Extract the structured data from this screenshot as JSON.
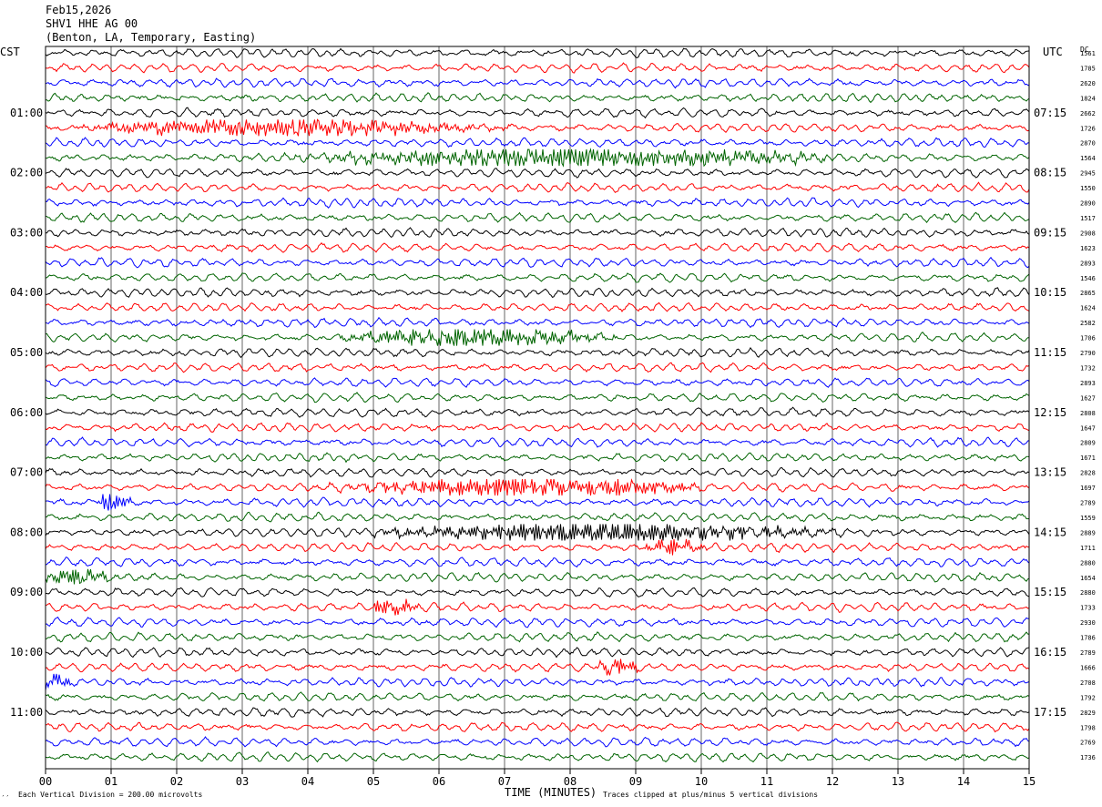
{
  "header": {
    "date": "Feb15,2026",
    "station": "SHV1 HHE AG 00",
    "location": "(Benton, LA, Temporary, Easting)"
  },
  "labels": {
    "left_tz": "CST",
    "right_tz": "UTC",
    "right_col": "DC",
    "xlabel": "TIME (MINUTES)",
    "footer_left": "Each Vertical Division =  200.00 microvolts",
    "footer_right": "Traces clipped at plus/minus 5 vertical divisions",
    "corner_mark": "′′"
  },
  "colors": {
    "trace_cycle": [
      "#000000",
      "#ff0000",
      "#0000ff",
      "#006400"
    ],
    "grid": "#000000",
    "background": "#ffffff"
  },
  "chart_data": {
    "type": "line",
    "title": "SHV1 HHE AG 00",
    "xlabel": "TIME (MINUTES)",
    "ylabel": "",
    "xlim": [
      0,
      15
    ],
    "x_ticks": [
      "00",
      "01",
      "02",
      "03",
      "04",
      "05",
      "06",
      "07",
      "08",
      "09",
      "10",
      "11",
      "12",
      "13",
      "14",
      "15"
    ],
    "grid": true,
    "row_minutes": 15,
    "left_hour_labels": [
      {
        "row": 4,
        "text": "01:00"
      },
      {
        "row": 8,
        "text": "02:00"
      },
      {
        "row": 12,
        "text": "03:00"
      },
      {
        "row": 16,
        "text": "04:00"
      },
      {
        "row": 20,
        "text": "05:00"
      },
      {
        "row": 24,
        "text": "06:00"
      },
      {
        "row": 28,
        "text": "07:00"
      },
      {
        "row": 32,
        "text": "08:00"
      },
      {
        "row": 36,
        "text": "09:00"
      },
      {
        "row": 40,
        "text": "10:00"
      },
      {
        "row": 44,
        "text": "11:00"
      }
    ],
    "right_hour_labels": [
      {
        "row": 4,
        "text": "07:15"
      },
      {
        "row": 8,
        "text": "08:15"
      },
      {
        "row": 12,
        "text": "09:15"
      },
      {
        "row": 16,
        "text": "10:15"
      },
      {
        "row": 20,
        "text": "11:15"
      },
      {
        "row": 24,
        "text": "12:15"
      },
      {
        "row": 28,
        "text": "13:15"
      },
      {
        "row": 32,
        "text": "14:15"
      },
      {
        "row": 36,
        "text": "15:15"
      },
      {
        "row": 40,
        "text": "16:15"
      },
      {
        "row": 44,
        "text": "17:15"
      }
    ],
    "dc_offsets": [
      "1561",
      "1785",
      "2620",
      "1824",
      "2662",
      "1726",
      "2870",
      "1564",
      "2945",
      "1550",
      "2890",
      "1517",
      "2908",
      "1623",
      "2893",
      "1546",
      "2865",
      "1624",
      "2582",
      "1706",
      "2790",
      "1732",
      "2893",
      "1627",
      "2808",
      "1647",
      "2809",
      "1671",
      "2828",
      "1697",
      "2789",
      "1559",
      "2889",
      "1711",
      "2880",
      "1654",
      "2880",
      "1733",
      "2930",
      "1786",
      "2789",
      "1666",
      "2708",
      "1792",
      "2829",
      "1798",
      "2769",
      "1736"
    ],
    "events": [
      {
        "row": 5,
        "start_min": 0.5,
        "end_min": 7.5,
        "peak_min": 3.5,
        "amplitude": 2.4
      },
      {
        "row": 7,
        "start_min": 3.5,
        "end_min": 12.0,
        "peak_min": 8.0,
        "amplitude": 3.2
      },
      {
        "row": 19,
        "start_min": 4.5,
        "end_min": 9.0,
        "peak_min": 6.5,
        "amplitude": 2.6
      },
      {
        "row": 29,
        "start_min": 4.0,
        "end_min": 10.0,
        "peak_min": 7.5,
        "amplitude": 3.0
      },
      {
        "row": 30,
        "start_min": 0.8,
        "end_min": 1.4,
        "peak_min": 1.0,
        "amplitude": 2.4
      },
      {
        "row": 32,
        "start_min": 5.0,
        "end_min": 12.5,
        "peak_min": 8.5,
        "amplitude": 3.0
      },
      {
        "row": 33,
        "start_min": 9.0,
        "end_min": 10.2,
        "peak_min": 9.6,
        "amplitude": 2.2
      },
      {
        "row": 35,
        "start_min": 0.0,
        "end_min": 1.2,
        "peak_min": 0.5,
        "amplitude": 2.0
      },
      {
        "row": 37,
        "start_min": 5.0,
        "end_min": 5.8,
        "peak_min": 5.3,
        "amplitude": 2.6
      },
      {
        "row": 41,
        "start_min": 8.4,
        "end_min": 9.1,
        "peak_min": 8.7,
        "amplitude": 2.8
      },
      {
        "row": 42,
        "start_min": 0.0,
        "end_min": 0.5,
        "peak_min": 0.1,
        "amplitude": 2.4
      }
    ]
  }
}
